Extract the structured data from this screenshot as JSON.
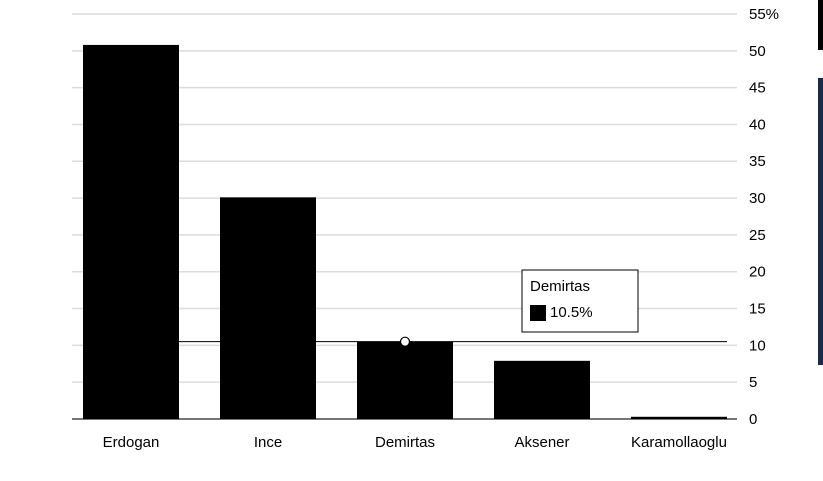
{
  "chart_data": {
    "type": "bar",
    "categories": [
      "Erdogan",
      "Ince",
      "Demirtas",
      "Aksener",
      "Karamollaoglu"
    ],
    "values": [
      50.8,
      30.1,
      10.5,
      7.9,
      0.3
    ],
    "value_labels": [
      null,
      null,
      "10.5%",
      null,
      null
    ],
    "color": "#000000",
    "ylim": [
      0,
      55
    ],
    "yticks": [
      0,
      5,
      10,
      15,
      20,
      25,
      30,
      35,
      40,
      45,
      50,
      {
        "value": 55,
        "label": "55%"
      }
    ],
    "grid": true
  }
}
